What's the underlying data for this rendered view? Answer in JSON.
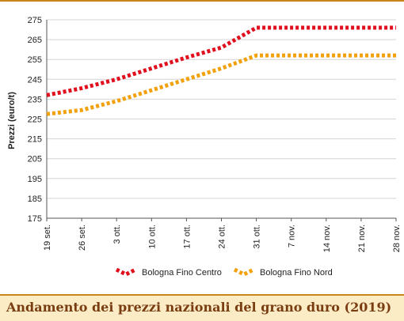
{
  "chart_data": {
    "type": "line",
    "title": "",
    "xlabel": "",
    "ylabel": "Prezzi (euro/t)",
    "ylim": [
      175,
      275
    ],
    "yticks": [
      175,
      185,
      195,
      205,
      215,
      225,
      235,
      245,
      255,
      265,
      275
    ],
    "categories": [
      "19 set.",
      "26 set.",
      "3 ott.",
      "10 ott.",
      "17 ott.",
      "24 ott.",
      "31 ott.",
      "7 nov.",
      "14 nov.",
      "21 nov.",
      "28 nov."
    ],
    "series": [
      {
        "name": "Bologna Fino Centro",
        "color": "#e0101e",
        "values": [
          237,
          240.5,
          245,
          250.5,
          256,
          261,
          271,
          271,
          271,
          271,
          271
        ]
      },
      {
        "name": "Bologna Fino Nord",
        "color": "#f2a10c",
        "values": [
          227.5,
          229.5,
          234,
          239.5,
          245,
          250.5,
          257,
          257,
          257,
          257,
          257
        ]
      }
    ],
    "grid": "horizontal",
    "legend_position": "bottom"
  },
  "caption": "Andamento dei prezzi nazionali del grano duro (2019)"
}
